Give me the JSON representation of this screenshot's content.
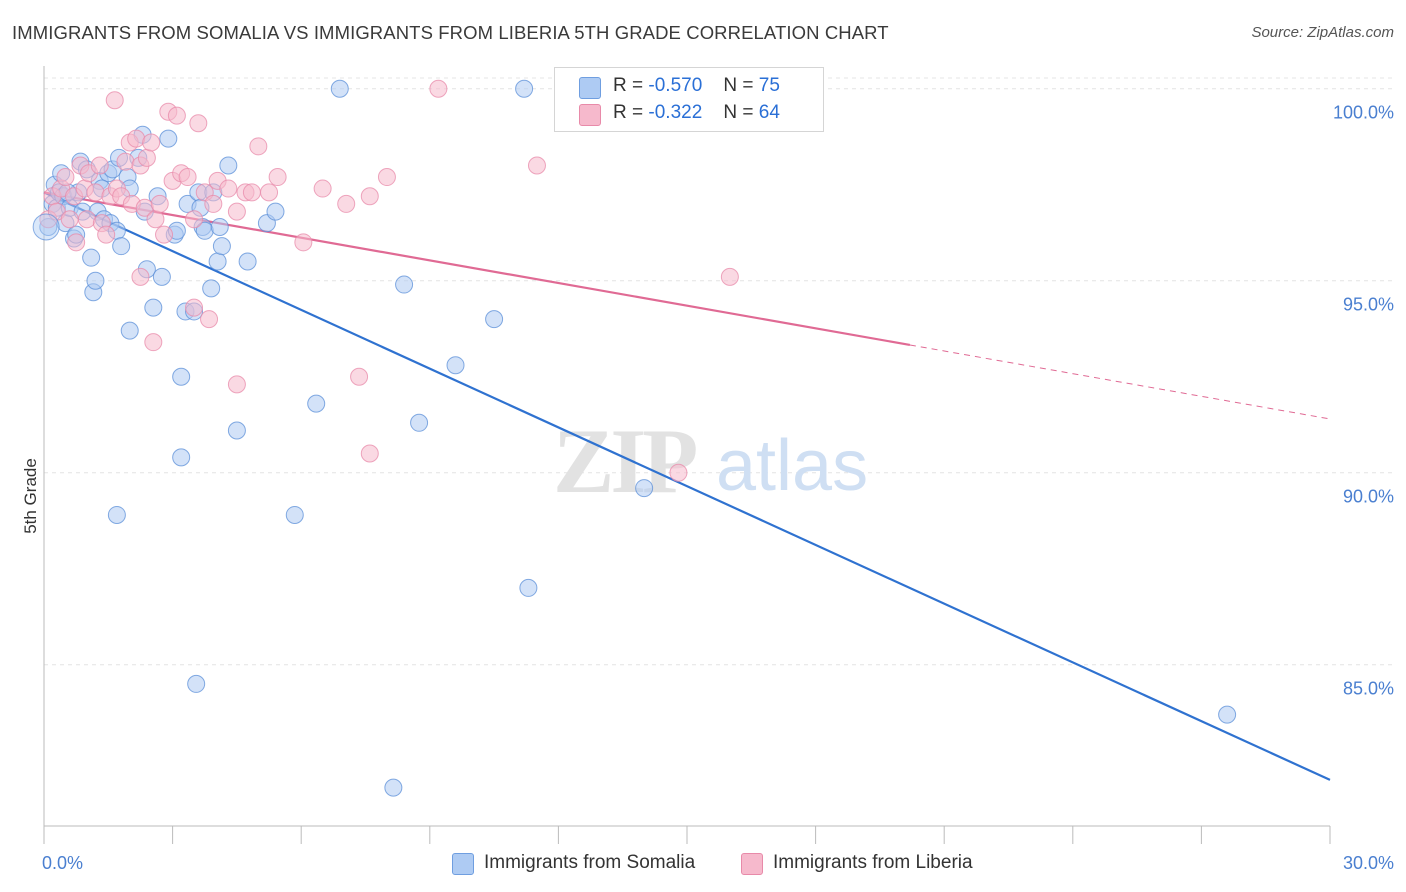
{
  "title": "IMMIGRANTS FROM SOMALIA VS IMMIGRANTS FROM LIBERIA 5TH GRADE CORRELATION CHART",
  "source": "Source: ZipAtlas.com",
  "watermark": {
    "zip": "ZIP",
    "atlas": "atlas"
  },
  "legend_stats": [
    {
      "r_label": "R =",
      "r_value": "-0.570",
      "n_label": "N =",
      "n_value": "75",
      "color": "#aecbf3"
    },
    {
      "r_label": "R =",
      "r_value": "-0.322",
      "n_label": "N =",
      "n_value": "64",
      "color": "#f6b9cc"
    }
  ],
  "bottom_legend": [
    {
      "label": "Immigrants from Somalia",
      "color": "#aecbf3"
    },
    {
      "label": "Immigrants from Liberia",
      "color": "#f6b9cc"
    }
  ],
  "chart_data": {
    "type": "scatter",
    "title": "IMMIGRANTS FROM SOMALIA VS IMMIGRANTS FROM LIBERIA 5TH GRADE CORRELATION CHART",
    "xlabel": "",
    "ylabel": "5th Grade",
    "xlim": [
      0,
      30
    ],
    "ylim": [
      80.8,
      100.8
    ],
    "x_tick_labels": [
      "0.0%",
      "30.0%"
    ],
    "y_ticks": [
      85,
      90,
      95,
      100
    ],
    "y_tick_labels": [
      "85.0%",
      "90.0%",
      "95.0%",
      "100.0%"
    ],
    "grid": true,
    "legend_position": "top-center",
    "colors": {
      "somalia_fill": "#aecbf3",
      "somalia_stroke": "#5b8fd8",
      "somalia_line": "#2f72d0",
      "liberia_fill": "#f6b9cc",
      "liberia_stroke": "#e88aa9",
      "liberia_line": "#e06a94"
    },
    "series": [
      {
        "name": "Immigrants from Somalia",
        "trend": {
          "x0": 0,
          "y0": 97.3,
          "x1": 30,
          "y1": 82.0,
          "solid_until": 30
        },
        "points": [
          [
            0.1,
            96.4
          ],
          [
            0.2,
            97.0
          ],
          [
            0.25,
            97.5
          ],
          [
            0.3,
            96.9
          ],
          [
            0.35,
            97.3
          ],
          [
            0.4,
            97.8
          ],
          [
            0.45,
            97.2
          ],
          [
            0.5,
            96.5
          ],
          [
            0.6,
            96.9
          ],
          [
            0.7,
            96.1
          ],
          [
            0.75,
            96.2
          ],
          [
            0.8,
            97.3
          ],
          [
            0.85,
            98.1
          ],
          [
            0.9,
            96.8
          ],
          [
            1.0,
            97.9
          ],
          [
            1.1,
            95.6
          ],
          [
            1.15,
            94.7
          ],
          [
            1.2,
            95.0
          ],
          [
            1.25,
            96.8
          ],
          [
            1.3,
            97.6
          ],
          [
            1.4,
            96.6
          ],
          [
            1.5,
            97.8
          ],
          [
            1.55,
            96.5
          ],
          [
            1.6,
            97.9
          ],
          [
            1.7,
            96.3
          ],
          [
            1.75,
            98.2
          ],
          [
            1.8,
            95.9
          ],
          [
            1.95,
            97.7
          ],
          [
            2.0,
            97.4
          ],
          [
            2.2,
            98.2
          ],
          [
            2.3,
            98.8
          ],
          [
            2.35,
            96.8
          ],
          [
            2.4,
            95.3
          ],
          [
            2.55,
            94.3
          ],
          [
            2.65,
            97.2
          ],
          [
            2.75,
            95.1
          ],
          [
            2.9,
            98.7
          ],
          [
            3.05,
            96.2
          ],
          [
            3.1,
            96.3
          ],
          [
            3.2,
            92.5
          ],
          [
            3.3,
            94.2
          ],
          [
            3.35,
            97.0
          ],
          [
            3.5,
            94.2
          ],
          [
            3.6,
            97.3
          ],
          [
            3.65,
            96.9
          ],
          [
            3.7,
            96.4
          ],
          [
            3.75,
            96.3
          ],
          [
            3.9,
            94.8
          ],
          [
            3.95,
            97.3
          ],
          [
            4.05,
            95.5
          ],
          [
            4.1,
            96.4
          ],
          [
            4.15,
            95.9
          ],
          [
            4.3,
            98.0
          ],
          [
            4.5,
            91.1
          ],
          [
            4.75,
            95.5
          ],
          [
            5.2,
            96.5
          ],
          [
            5.4,
            96.8
          ],
          [
            5.85,
            88.9
          ],
          [
            6.35,
            91.8
          ],
          [
            6.9,
            100.0
          ],
          [
            8.15,
            81.8
          ],
          [
            8.4,
            94.9
          ],
          [
            8.75,
            91.3
          ],
          [
            9.6,
            92.8
          ],
          [
            10.5,
            94.0
          ],
          [
            11.2,
            100.0
          ],
          [
            11.3,
            87.0
          ],
          [
            14.0,
            89.6
          ],
          [
            27.6,
            83.7
          ],
          [
            3.2,
            90.4
          ],
          [
            1.7,
            88.9
          ],
          [
            3.55,
            84.5
          ],
          [
            1.35,
            97.4
          ],
          [
            2.0,
            93.7
          ],
          [
            0.55,
            97.3
          ]
        ]
      },
      {
        "name": "Immigrants from Liberia",
        "trend": {
          "x0": 0,
          "y0": 97.3,
          "x1": 30,
          "y1": 91.4,
          "solid_until": 20.2
        },
        "points": [
          [
            0.1,
            96.6
          ],
          [
            0.2,
            97.2
          ],
          [
            0.3,
            96.8
          ],
          [
            0.4,
            97.4
          ],
          [
            0.5,
            97.7
          ],
          [
            0.6,
            96.6
          ],
          [
            0.7,
            97.2
          ],
          [
            0.75,
            96.0
          ],
          [
            0.85,
            98.0
          ],
          [
            0.95,
            97.4
          ],
          [
            1.0,
            96.6
          ],
          [
            1.05,
            97.8
          ],
          [
            1.2,
            97.3
          ],
          [
            1.3,
            98.0
          ],
          [
            1.35,
            96.5
          ],
          [
            1.45,
            96.2
          ],
          [
            1.55,
            97.2
          ],
          [
            1.65,
            99.7
          ],
          [
            1.7,
            97.4
          ],
          [
            1.8,
            97.2
          ],
          [
            1.9,
            98.1
          ],
          [
            2.0,
            98.6
          ],
          [
            2.05,
            97.0
          ],
          [
            2.15,
            98.7
          ],
          [
            2.25,
            98.0
          ],
          [
            2.35,
            96.9
          ],
          [
            2.4,
            98.2
          ],
          [
            2.5,
            98.6
          ],
          [
            2.6,
            96.6
          ],
          [
            2.7,
            97.0
          ],
          [
            2.8,
            96.2
          ],
          [
            2.9,
            99.4
          ],
          [
            3.0,
            97.6
          ],
          [
            3.1,
            99.3
          ],
          [
            3.2,
            97.8
          ],
          [
            3.35,
            97.7
          ],
          [
            3.5,
            96.6
          ],
          [
            3.6,
            99.1
          ],
          [
            3.75,
            97.3
          ],
          [
            3.95,
            97.0
          ],
          [
            4.05,
            97.6
          ],
          [
            4.3,
            97.4
          ],
          [
            4.5,
            96.8
          ],
          [
            4.7,
            97.3
          ],
          [
            4.85,
            97.3
          ],
          [
            5.0,
            98.5
          ],
          [
            5.25,
            97.3
          ],
          [
            5.45,
            97.7
          ],
          [
            6.05,
            96.0
          ],
          [
            6.5,
            97.4
          ],
          [
            7.05,
            97.0
          ],
          [
            7.35,
            92.5
          ],
          [
            7.6,
            97.2
          ],
          [
            8.0,
            97.7
          ],
          [
            7.6,
            90.5
          ],
          [
            9.2,
            100.0
          ],
          [
            11.5,
            98.0
          ],
          [
            14.8,
            90.0
          ],
          [
            16.0,
            95.1
          ],
          [
            2.25,
            95.1
          ],
          [
            2.55,
            93.4
          ],
          [
            3.85,
            94.0
          ],
          [
            3.5,
            94.3
          ],
          [
            4.5,
            92.3
          ]
        ]
      }
    ]
  }
}
